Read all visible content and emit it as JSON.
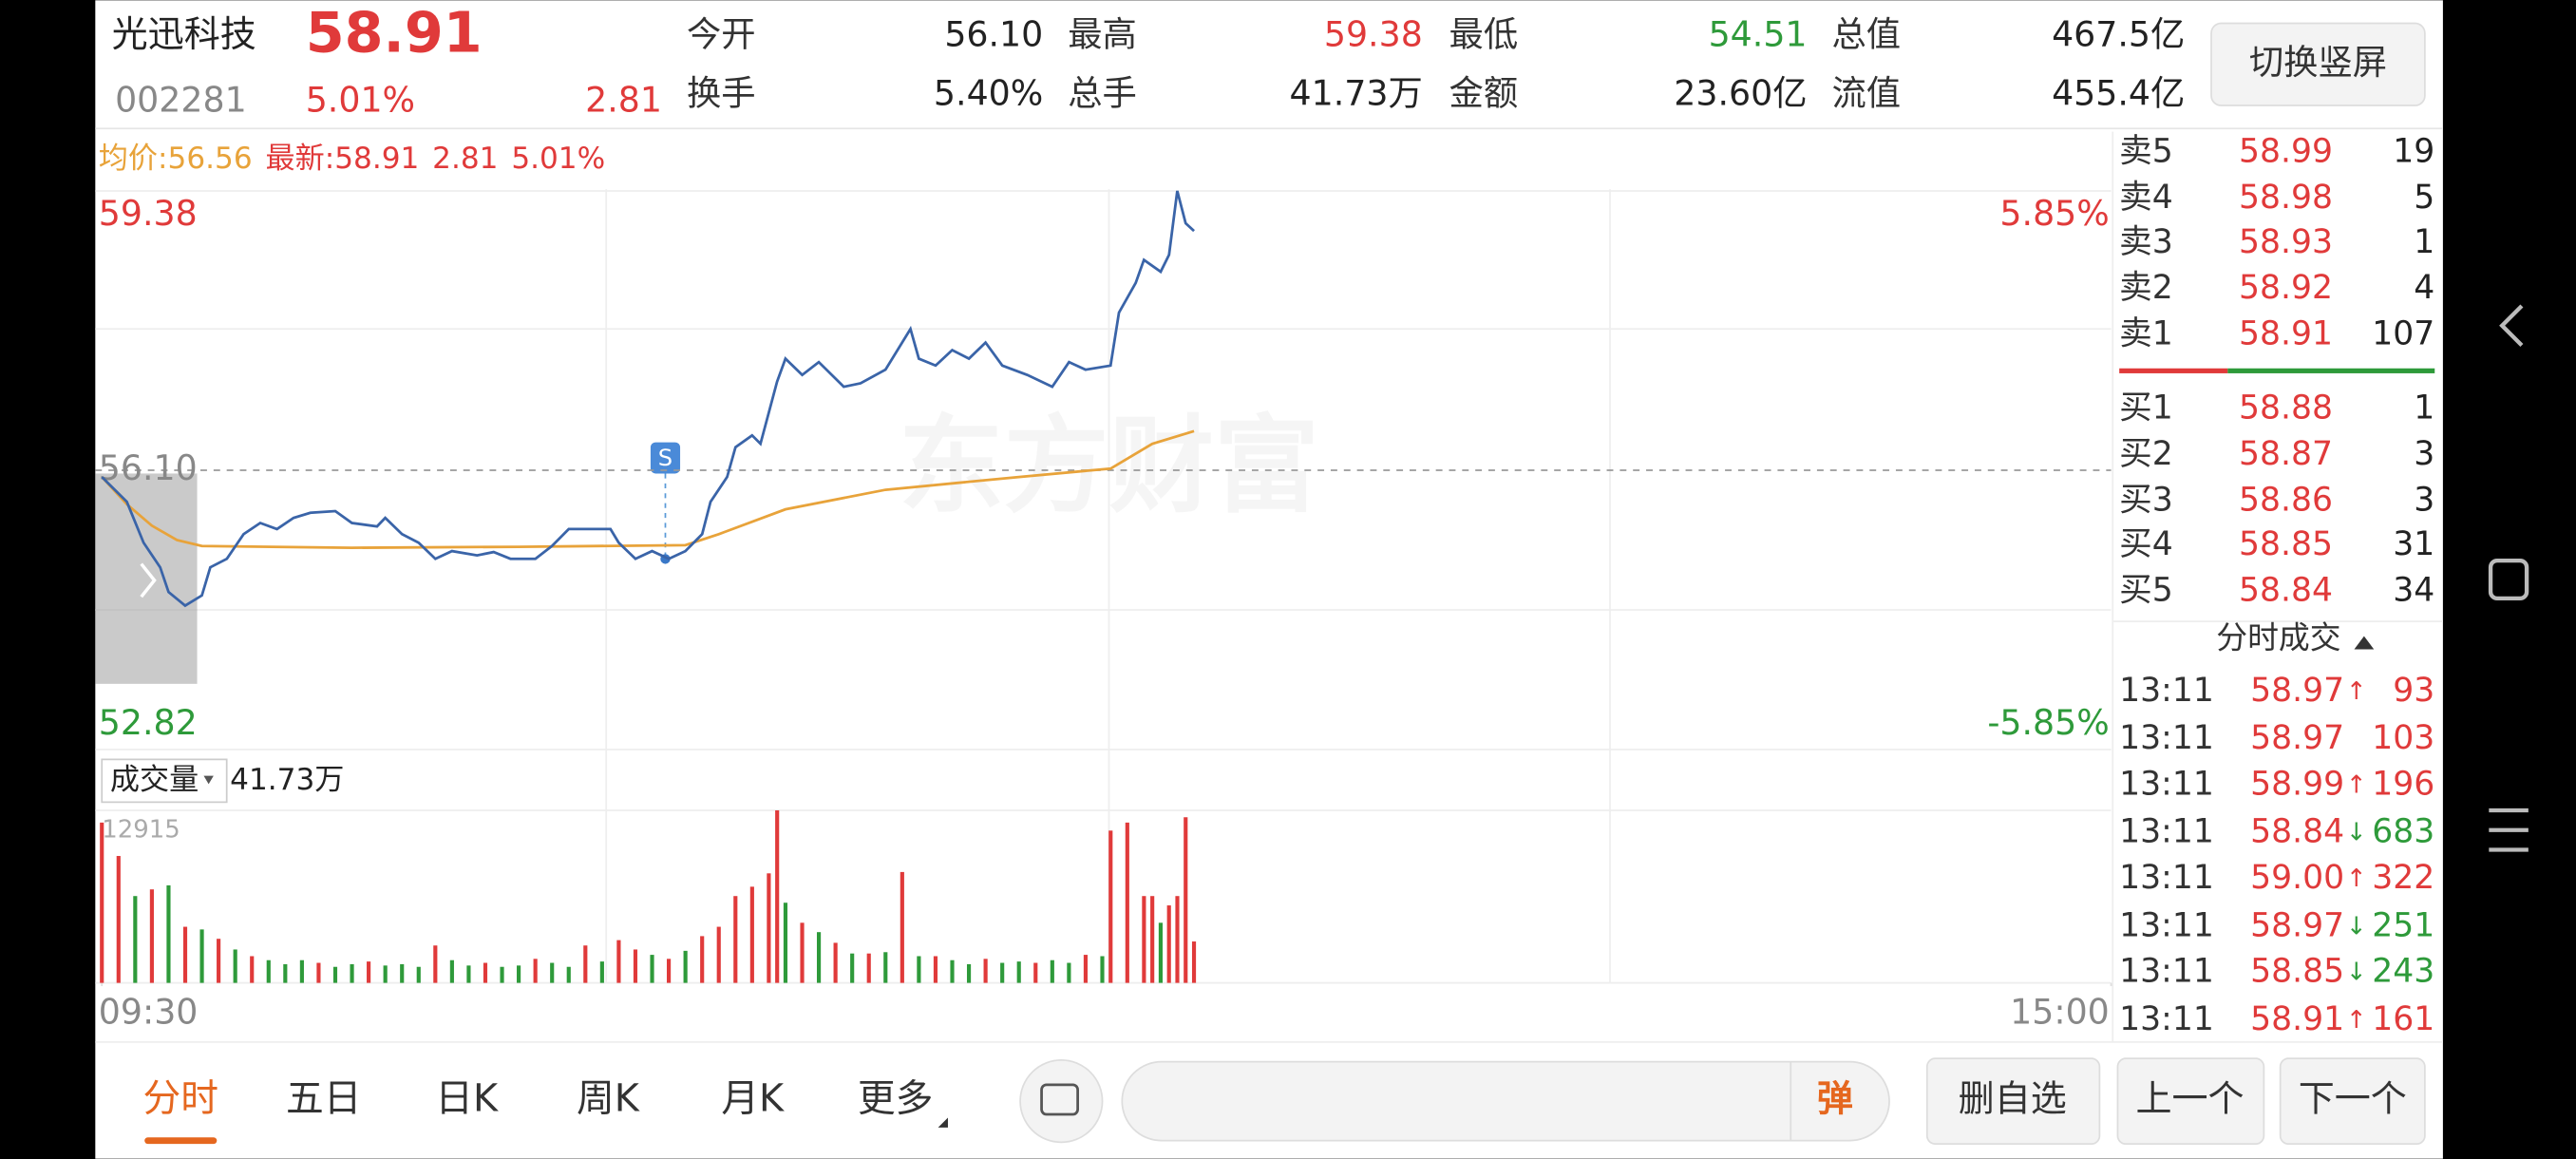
{
  "header": {
    "name": "光迅科技",
    "price": "58.91",
    "code": "002281",
    "change_pct": "5.01%",
    "change": "2.81",
    "button": "切换竖屏"
  },
  "stats": [
    {
      "label": "今开",
      "value": "56.10",
      "color": "#222222"
    },
    {
      "label": "最高",
      "value": "59.38",
      "color": "#e03a3a"
    },
    {
      "label": "最低",
      "value": "54.51",
      "color": "#2e9a3a"
    },
    {
      "label": "总值",
      "value": "467.5亿",
      "color": "#222222"
    },
    {
      "label": "换手",
      "value": "5.40%",
      "color": "#222222"
    },
    {
      "label": "总手",
      "value": "41.73万",
      "color": "#222222"
    },
    {
      "label": "金额",
      "value": "23.60亿",
      "color": "#222222"
    },
    {
      "label": "流值",
      "value": "455.4亿",
      "color": "#222222"
    }
  ],
  "chart_info": {
    "avg_label": "均价:",
    "avg": "56.56",
    "latest_label": "最新:",
    "latest": "58.91",
    "change": "2.81",
    "change_pct": "5.01%"
  },
  "watermark": "东方财富",
  "marker": "S",
  "chart_data": [
    {
      "type": "line",
      "xlim": [
        0,
        241
      ],
      "xticks": [
        {
          "value": 0,
          "label": "09:30"
        },
        {
          "value": 241,
          "label": "15:00"
        }
      ],
      "ylim": [
        52.82,
        59.38
      ],
      "yticks": [
        59.38,
        {
          "value": 56.1,
          "label": "56.10"
        },
        52.82
      ],
      "y2lim": [
        -5.85,
        5.85
      ],
      "y2ticks": [
        {
          "value": 5.85,
          "label": "5.85%"
        },
        {
          "value": -5.85,
          "label": "-5.85%"
        }
      ],
      "series": [
        {
          "color": "#3a64a8",
          "x": [
            0,
            3,
            5,
            7,
            8,
            10,
            12,
            13,
            15,
            17,
            19,
            21,
            23,
            25,
            28,
            30,
            33,
            34,
            36,
            38,
            40,
            42,
            45,
            47,
            49,
            52,
            54,
            56,
            58,
            61,
            62,
            64,
            66,
            68,
            70,
            72,
            73,
            75,
            76,
            78,
            79,
            81,
            82,
            84,
            86,
            89,
            91,
            94,
            97,
            98,
            100,
            102,
            104,
            106,
            108,
            111,
            114,
            116,
            118,
            121,
            122,
            124,
            125,
            127,
            128,
            129,
            130,
            131
          ],
          "values": [
            56.02,
            55.73,
            55.25,
            54.96,
            54.67,
            54.51,
            54.63,
            54.96,
            55.06,
            55.35,
            55.48,
            55.41,
            55.54,
            55.6,
            55.62,
            55.48,
            55.44,
            55.54,
            55.35,
            55.25,
            55.06,
            55.15,
            55.1,
            55.14,
            55.06,
            55.06,
            55.21,
            55.41,
            55.41,
            55.41,
            55.25,
            55.06,
            55.15,
            55.06,
            55.15,
            55.35,
            55.73,
            56.02,
            56.37,
            56.51,
            56.41,
            57.14,
            57.41,
            57.22,
            57.37,
            57.08,
            57.12,
            57.28,
            57.76,
            57.41,
            57.33,
            57.51,
            57.41,
            57.6,
            57.33,
            57.22,
            57.08,
            57.37,
            57.28,
            57.33,
            57.95,
            58.3,
            58.57,
            58.43,
            58.63,
            59.38,
            59.0,
            58.91
          ]
        },
        {
          "color": "#e8a33a",
          "x": [
            0,
            3,
            6,
            9,
            12,
            30,
            50,
            70,
            74,
            82,
            94,
            110,
            121,
            126,
            131
          ],
          "values": [
            56.02,
            55.7,
            55.45,
            55.28,
            55.21,
            55.19,
            55.2,
            55.22,
            55.35,
            55.64,
            55.87,
            56.02,
            56.12,
            56.41,
            56.56
          ]
        }
      ]
    },
    {
      "type": "bar",
      "title": "成交量",
      "total": "41.73万",
      "xlim": [
        0,
        241
      ],
      "ylim": [
        0,
        12915
      ],
      "yticks": [
        12915
      ],
      "series": [
        {
          "color": "#e03a3a",
          "x": [
            0,
            2,
            6,
            10,
            14,
            18,
            26,
            32,
            40,
            46,
            52,
            58,
            62,
            64,
            68,
            72,
            74,
            76,
            78,
            80,
            81,
            84,
            88,
            92,
            96,
            100,
            106,
            112,
            118,
            121,
            123,
            125,
            126,
            128,
            129,
            130,
            131
          ],
          "values": [
            12000,
            9500,
            7000,
            4200,
            3300,
            2000,
            1500,
            1600,
            2800,
            1500,
            1800,
            2800,
            3200,
            2500,
            1800,
            3500,
            4200,
            6500,
            7200,
            8200,
            12915,
            4500,
            3000,
            2200,
            8300,
            2000,
            1800,
            1500,
            2100,
            11400,
            12000,
            6500,
            6500,
            5800,
            6500,
            12400,
            3100
          ]
        },
        {
          "color": "#2e9a3a",
          "x": [
            4,
            8,
            12,
            16,
            20,
            22,
            24,
            28,
            30,
            34,
            36,
            38,
            42,
            44,
            48,
            50,
            54,
            56,
            60,
            66,
            70,
            82,
            86,
            90,
            94,
            98,
            102,
            104,
            108,
            110,
            114,
            116,
            120,
            127
          ],
          "values": [
            6500,
            7300,
            4000,
            2500,
            1700,
            1400,
            1700,
            1200,
            1400,
            1300,
            1400,
            1200,
            1700,
            1300,
            1200,
            1300,
            1500,
            1200,
            1600,
            2100,
            2400,
            6000,
            3800,
            2200,
            2300,
            2000,
            1700,
            1400,
            1500,
            1600,
            1700,
            1500,
            2000,
            4500
          ]
        }
      ]
    }
  ],
  "order_book": {
    "asks": [
      {
        "label": "卖5",
        "price": "58.99",
        "volume": "19"
      },
      {
        "label": "卖4",
        "price": "58.98",
        "volume": "5"
      },
      {
        "label": "卖3",
        "price": "58.93",
        "volume": "1"
      },
      {
        "label": "卖2",
        "price": "58.92",
        "volume": "4"
      },
      {
        "label": "卖1",
        "price": "58.91",
        "volume": "107"
      }
    ],
    "bids": [
      {
        "label": "买1",
        "price": "58.88",
        "volume": "1"
      },
      {
        "label": "买2",
        "price": "58.87",
        "volume": "3"
      },
      {
        "label": "买3",
        "price": "58.86",
        "volume": "3"
      },
      {
        "label": "买4",
        "price": "58.85",
        "volume": "31"
      },
      {
        "label": "买5",
        "price": "58.84",
        "volume": "34"
      }
    ]
  },
  "trades": {
    "title": "分时成交",
    "rows": [
      {
        "time": "13:11",
        "price": "58.97",
        "arrow": "↑",
        "volume": "93",
        "color": "#e03a3a"
      },
      {
        "time": "13:11",
        "price": "58.97",
        "volume": "103",
        "color": "#e03a3a"
      },
      {
        "time": "13:11",
        "price": "58.99",
        "arrow": "↑",
        "volume": "196",
        "color": "#e03a3a"
      },
      {
        "time": "13:11",
        "price": "58.84",
        "arrow": "↓",
        "volume": "683",
        "color": "#2e9a3a"
      },
      {
        "time": "13:11",
        "price": "59.00",
        "arrow": "↑",
        "volume": "322",
        "color": "#e03a3a"
      },
      {
        "time": "13:11",
        "price": "58.97",
        "arrow": "↓",
        "volume": "251",
        "color": "#2e9a3a"
      },
      {
        "time": "13:11",
        "price": "58.85",
        "arrow": "↓",
        "volume": "243",
        "color": "#2e9a3a"
      },
      {
        "time": "13:11",
        "price": "58.91",
        "arrow": "↑",
        "volume": "161",
        "color": "#e03a3a"
      }
    ]
  },
  "tabs": [
    "分时",
    "五日",
    "日K",
    "周K",
    "月K",
    "更多"
  ],
  "input_icon": "弹",
  "buttons": [
    "删自选",
    "上一个",
    "下一个"
  ]
}
